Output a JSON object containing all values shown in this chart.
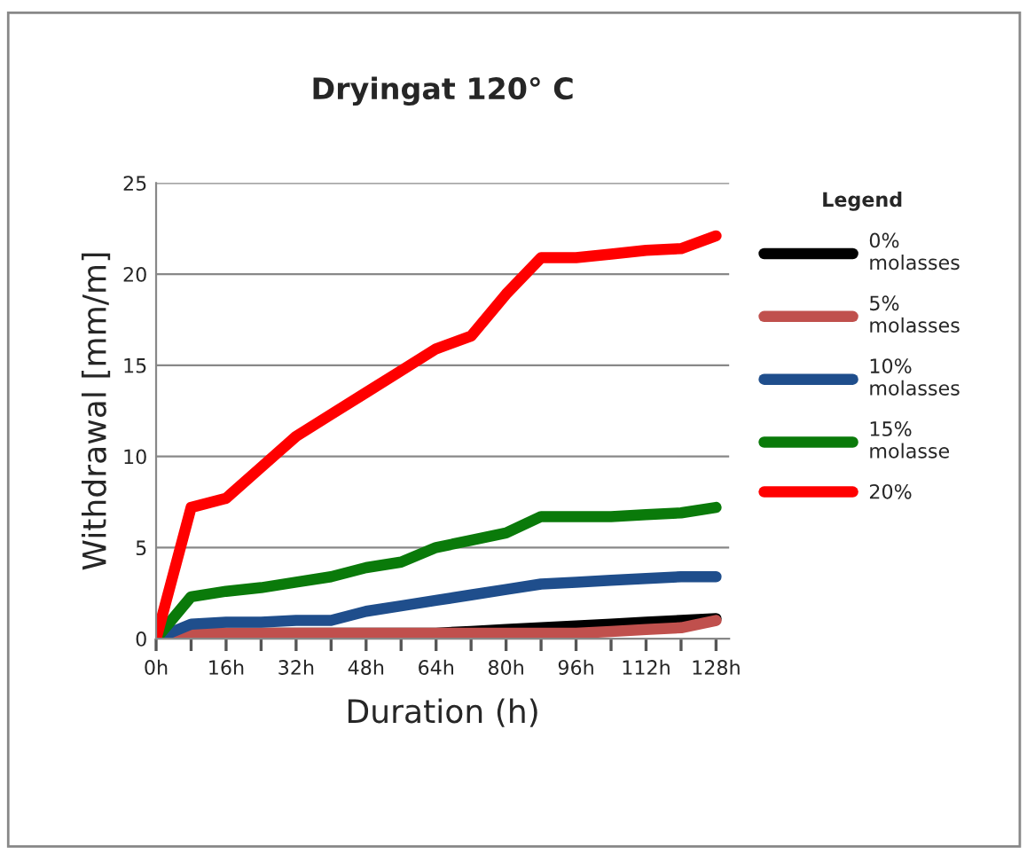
{
  "chart_data": {
    "type": "line",
    "title": "Dryingat 120° C",
    "xlabel": "Duration (h)",
    "ylabel": "Withdrawal [mm/m]",
    "legend_title": "Legend",
    "x": [
      0,
      8,
      16,
      24,
      32,
      40,
      48,
      56,
      64,
      72,
      80,
      88,
      96,
      104,
      112,
      120,
      128
    ],
    "series": [
      {
        "name": "0%\nmolasses",
        "color": "#000000",
        "values": [
          0,
          0.3,
          0.3,
          0.3,
          0.3,
          0.3,
          0.3,
          0.3,
          0.3,
          0.4,
          0.5,
          0.6,
          0.7,
          0.8,
          0.9,
          1.0,
          1.1
        ]
      },
      {
        "name": "5%\nmolasses",
        "color": "#c0504d",
        "values": [
          0,
          0.3,
          0.3,
          0.3,
          0.3,
          0.3,
          0.3,
          0.3,
          0.3,
          0.3,
          0.3,
          0.3,
          0.3,
          0.4,
          0.5,
          0.6,
          1.0
        ]
      },
      {
        "name": "10%\nmolasses",
        "color": "#1f4e8c",
        "values": [
          0,
          0.8,
          0.9,
          0.9,
          1.0,
          1.0,
          1.5,
          1.8,
          2.1,
          2.4,
          2.7,
          3.0,
          3.1,
          3.2,
          3.3,
          3.4,
          3.4
        ]
      },
      {
        "name": "15%\nmolasse",
        "color": "#0a7a0a",
        "values": [
          0,
          2.3,
          2.6,
          2.8,
          3.1,
          3.4,
          3.9,
          4.2,
          5.0,
          5.4,
          5.8,
          6.7,
          6.7,
          6.7,
          6.8,
          6.9,
          7.2
        ]
      },
      {
        "name": "20%",
        "color": "#ff0000",
        "values": [
          0,
          7.2,
          7.7,
          9.4,
          11.1,
          12.3,
          13.5,
          14.7,
          15.9,
          16.6,
          18.9,
          20.9,
          20.9,
          21.1,
          21.3,
          21.4,
          22.1
        ]
      }
    ],
    "xlim": [
      0,
      131
    ],
    "xticks": [
      {
        "value": 0,
        "label": "0h"
      },
      {
        "value": 8,
        "label": null
      },
      {
        "value": 16,
        "label": "16h"
      },
      {
        "value": 24,
        "label": null
      },
      {
        "value": 32,
        "label": "32h"
      },
      {
        "value": 40,
        "label": null
      },
      {
        "value": 48,
        "label": "48h"
      },
      {
        "value": 56,
        "label": null
      },
      {
        "value": 64,
        "label": "64h"
      },
      {
        "value": 72,
        "label": null
      },
      {
        "value": 80,
        "label": "80h"
      },
      {
        "value": 88,
        "label": null
      },
      {
        "value": 96,
        "label": "96h"
      },
      {
        "value": 104,
        "label": null
      },
      {
        "value": 112,
        "label": "112h"
      },
      {
        "value": 120,
        "label": null
      },
      {
        "value": 128,
        "label": "128h"
      }
    ],
    "ylim": [
      0,
      25
    ],
    "yticks": [
      0,
      5,
      10,
      15,
      20,
      25
    ],
    "grid": "y",
    "legend": "right",
    "marker": "none",
    "line_style": "solid"
  }
}
